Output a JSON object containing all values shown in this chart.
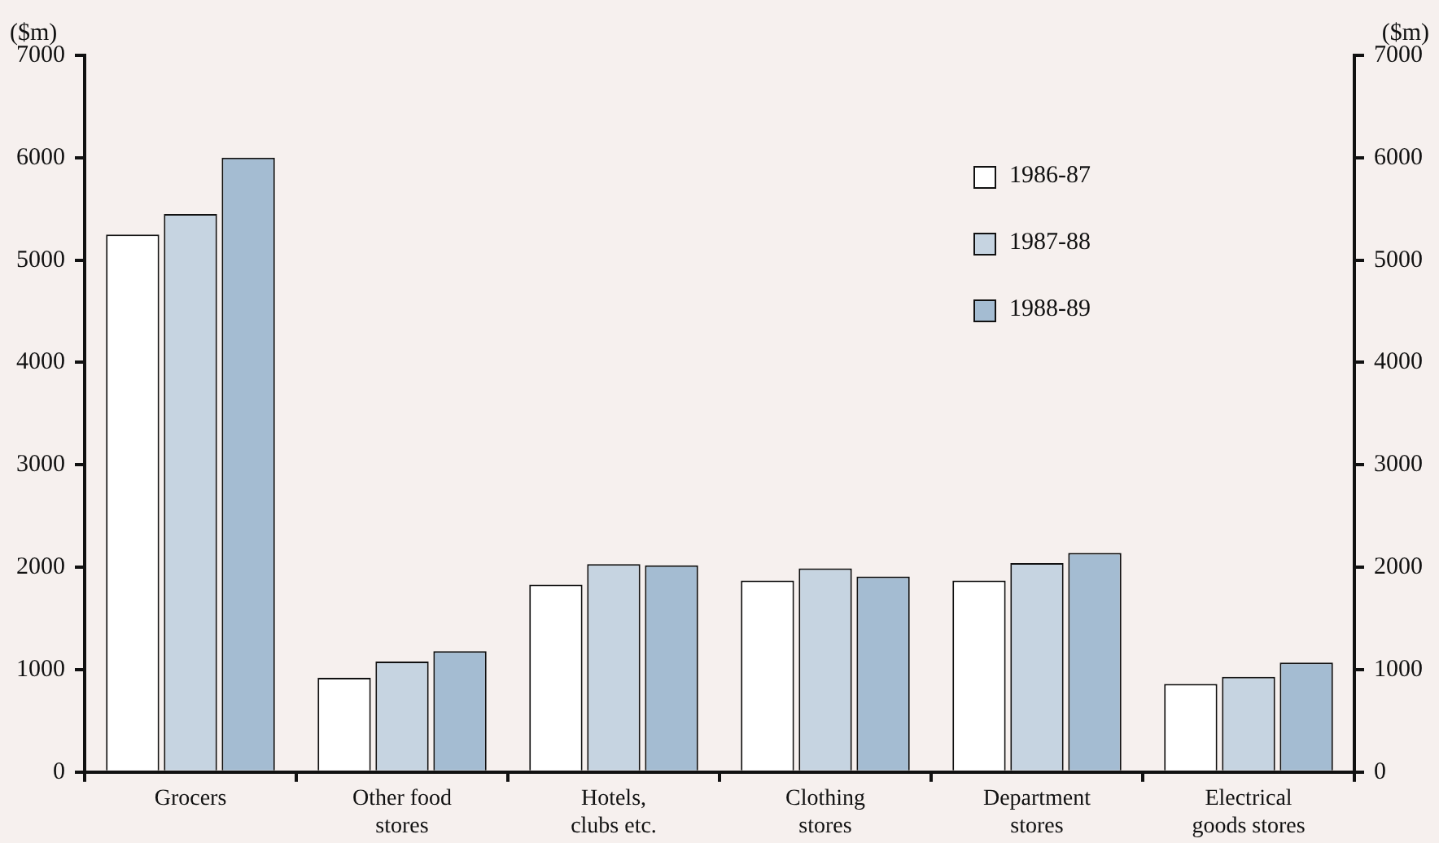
{
  "chart_data": {
    "type": "bar",
    "ylabel": "($m)",
    "y2label": "($m)",
    "categories": [
      "Grocers",
      "Other food\nstores",
      "Hotels,\nclubs etc.",
      "Clothing\nstores",
      "Department\nstores",
      "Electrical\ngoods stores"
    ],
    "series": [
      {
        "name": "1986-87",
        "color": "#ffffff",
        "values": [
          5250,
          920,
          1830,
          1870,
          1870,
          860
        ]
      },
      {
        "name": "1987-88",
        "color": "#c6d4e1",
        "values": [
          5450,
          1080,
          2030,
          1990,
          2040,
          930
        ]
      },
      {
        "name": "1988-89",
        "color": "#a4bcd2",
        "values": [
          6000,
          1180,
          2020,
          1910,
          2140,
          1070
        ]
      }
    ],
    "ylim": [
      0,
      7000
    ],
    "yticks": [
      0,
      1000,
      2000,
      3000,
      4000,
      5000,
      6000,
      7000
    ],
    "y2lim": [
      0,
      7000
    ],
    "y2ticks": [
      0,
      1000,
      2000,
      3000,
      4000,
      5000,
      6000,
      7000
    ],
    "grid": false,
    "legend": "top right"
  }
}
